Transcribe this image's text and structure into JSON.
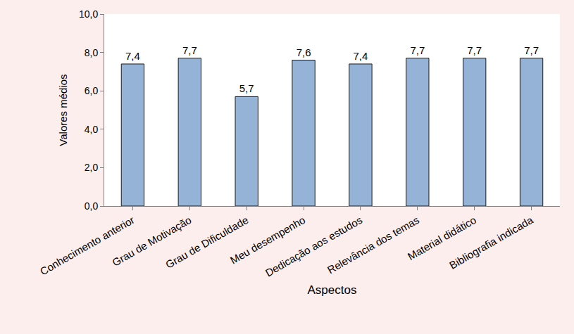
{
  "chart_data": {
    "type": "bar",
    "x_label": "Aspectos",
    "y_label": "Valores médios",
    "categories": [
      "Conhecimento anterior",
      "Grau de Motivação",
      "Grau de Dificuldade",
      "Meu desempenho",
      "Dedicação aos estudos",
      "Relevância dos temas",
      "Material didático",
      "Bibliografia indicada"
    ],
    "values": [
      7.4,
      7.7,
      5.7,
      7.6,
      7.4,
      7.7,
      7.7,
      7.7
    ],
    "value_labels": [
      "7,4",
      "7,7",
      "5,7",
      "7,6",
      "7,4",
      "7,7",
      "7,7",
      "7,7"
    ],
    "data_labels": true,
    "color": "#95b3d7",
    "ylim": [
      0,
      10
    ],
    "yticks": [
      {
        "value": 0,
        "label": "0,0"
      },
      {
        "value": 2,
        "label": "2,0"
      },
      {
        "value": 4,
        "label": "4,0"
      },
      {
        "value": 6,
        "label": "6,0"
      },
      {
        "value": 8,
        "label": "8,0"
      },
      {
        "value": 10,
        "label": "10,0"
      }
    ],
    "grid": false
  }
}
